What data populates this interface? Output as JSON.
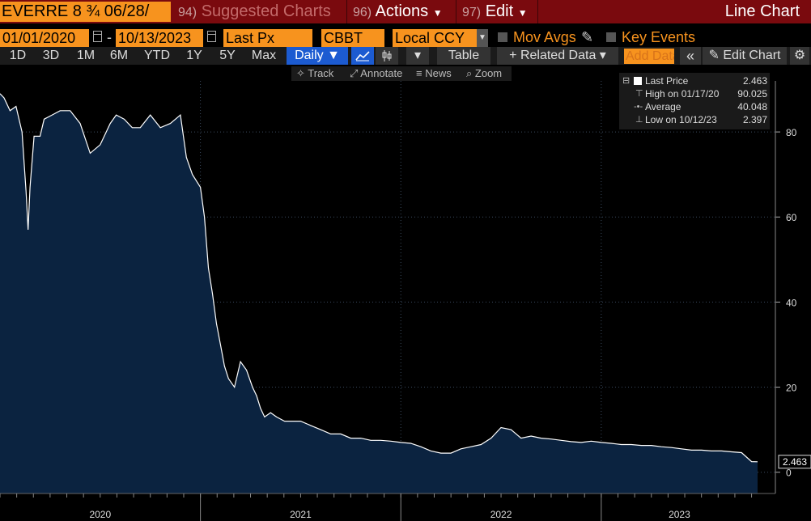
{
  "menu": {
    "ticker": "EVERRE 8 ¾ 06/28/",
    "suggested_num": "94)",
    "suggested_label": "Suggested Charts",
    "actions_num": "96)",
    "actions_label": "Actions",
    "edit_num": "97)",
    "edit_label": "Edit",
    "view_title": "Line Chart"
  },
  "params": {
    "start_date": "01/01/2020",
    "end_date": "10/13/2023",
    "field": "Last Px",
    "source": "CBBT",
    "currency": "Local CCY",
    "mov_avgs": "Mov Avgs",
    "key_events": "Key Events"
  },
  "toolbar": {
    "periods": [
      "1D",
      "3D",
      "1M",
      "6M",
      "YTD",
      "1Y",
      "5Y",
      "Max"
    ],
    "frequency": "Daily",
    "table": "Table",
    "related_data": "Related Data",
    "add_data": "Add Data",
    "edit_chart": "Edit Chart"
  },
  "subtools": {
    "track": "Track",
    "annotate": "Annotate",
    "news": "News",
    "zoom": "Zoom"
  },
  "legend": {
    "last_label": "Last Price",
    "last_value": "2.463",
    "high_label": "High on 01/17/20",
    "high_value": "90.025",
    "avg_label": "Average",
    "avg_value": "40.048",
    "low_label": "Low on 10/12/23",
    "low_value": "2.397"
  },
  "colors": {
    "menu_bg": "#7a0a0e",
    "field_bg": "#f7931e",
    "area_fill": "#0b2340",
    "line": "#ffffff",
    "selected": "#1c5bd1"
  },
  "chart_data": {
    "type": "area",
    "ylim": [
      -5,
      92
    ],
    "y_ticks": [
      0,
      20,
      40,
      60,
      80
    ],
    "x_year_labels": [
      "2020",
      "2021",
      "2022",
      "2023"
    ],
    "last_value_label": "2.463",
    "series": [
      {
        "x": [
          2020.0,
          2020.02,
          2020.05,
          2020.08,
          2020.11,
          2020.13,
          2020.14,
          2020.15,
          2020.17,
          2020.2,
          2020.22,
          2020.26,
          2020.3,
          2020.35,
          2020.4,
          2020.45,
          2020.5,
          2020.55,
          2020.58,
          2020.62,
          2020.66,
          2020.7,
          2020.75,
          2020.8,
          2020.85,
          2020.9,
          2020.93,
          2020.96,
          2021.0,
          2021.02,
          2021.04,
          2021.06,
          2021.08,
          2021.1,
          2021.12,
          2021.14,
          2021.17,
          2021.2,
          2021.23,
          2021.26,
          2021.28,
          2021.3,
          2021.32,
          2021.35,
          2021.38,
          2021.42,
          2021.46,
          2021.5,
          2021.55,
          2021.6,
          2021.65,
          2021.7,
          2021.75,
          2021.8,
          2021.85,
          2021.9,
          2021.95,
          2022.0,
          2022.05,
          2022.1,
          2022.15,
          2022.2,
          2022.25,
          2022.3,
          2022.35,
          2022.4,
          2022.45,
          2022.5,
          2022.55,
          2022.6,
          2022.65,
          2022.7,
          2022.75,
          2022.8,
          2022.85,
          2022.9,
          2022.95,
          2023.0,
          2023.05,
          2023.1,
          2023.15,
          2023.2,
          2023.25,
          2023.3,
          2023.35,
          2023.4,
          2023.45,
          2023.5,
          2023.55,
          2023.6,
          2023.65,
          2023.7,
          2023.75,
          2023.78
        ],
        "y": [
          89,
          88,
          85,
          86,
          80,
          66,
          57,
          67,
          79,
          79,
          83,
          84,
          85,
          85,
          82,
          75,
          77,
          82,
          84,
          83,
          81,
          81,
          84,
          81,
          82,
          84,
          74,
          70,
          67,
          60,
          48,
          42,
          35,
          30,
          25,
          22,
          20,
          26,
          24,
          20,
          18,
          15,
          13,
          14,
          13,
          12,
          12,
          12,
          11,
          10,
          9,
          9,
          8,
          8,
          7.5,
          7.5,
          7.3,
          7,
          6.8,
          6,
          5,
          4.5,
          4.5,
          5.5,
          6,
          6.5,
          8,
          10.5,
          10,
          8,
          8.5,
          8,
          7.8,
          7.5,
          7.2,
          7,
          7.3,
          7,
          6.8,
          6.5,
          6.5,
          6.3,
          6.3,
          6,
          5.8,
          5.5,
          5.2,
          5.2,
          5,
          5,
          4.8,
          4.6,
          2.5,
          2.463
        ]
      }
    ]
  }
}
